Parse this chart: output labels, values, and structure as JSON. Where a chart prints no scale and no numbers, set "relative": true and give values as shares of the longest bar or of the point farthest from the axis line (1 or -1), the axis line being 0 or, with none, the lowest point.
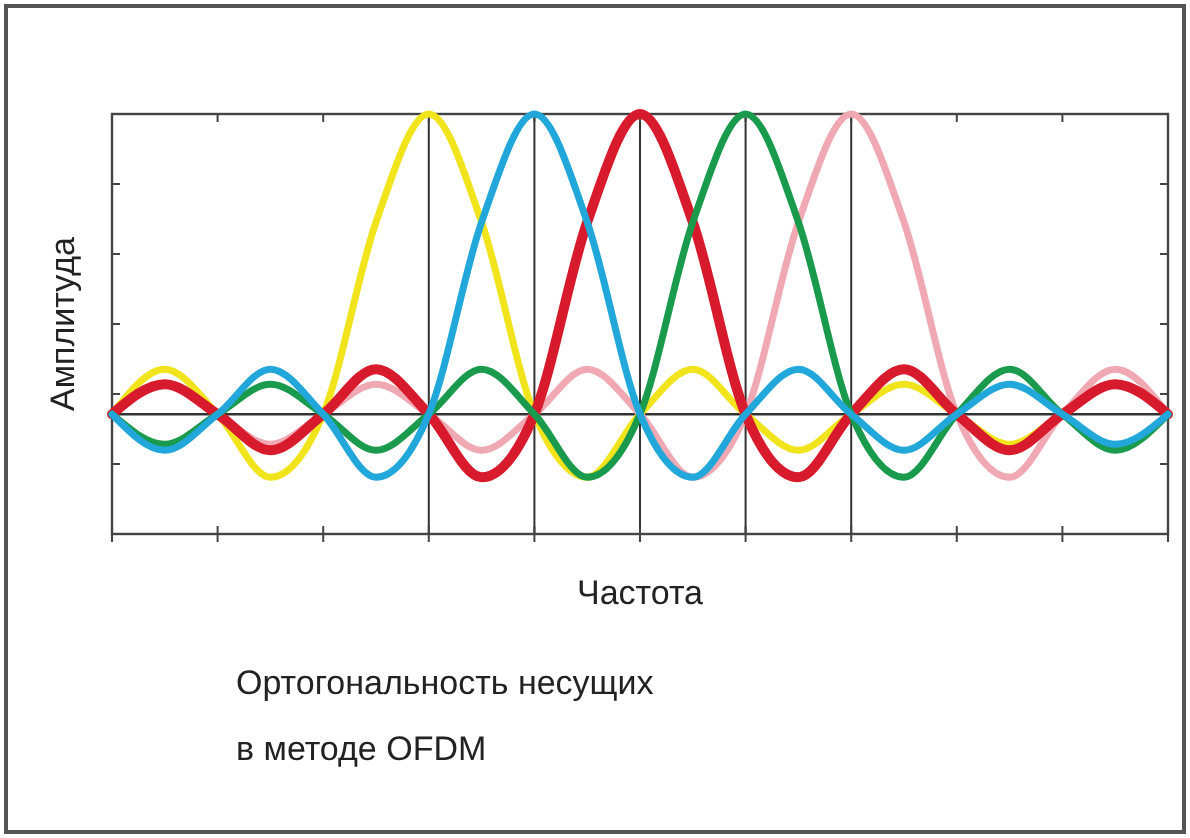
{
  "chart_data": {
    "type": "line",
    "relative": true,
    "xlabel": "Частота",
    "ylabel": "Амплитуда",
    "grid": "x",
    "line_style": "solid",
    "annotations": [
      "Ортогональность несущих\nв методе OFDM"
    ],
    "categories": [
      null,
      null,
      null,
      null,
      null,
      null,
      null,
      null,
      null,
      null,
      null,
      null,
      null,
      null,
      null,
      null,
      null,
      null,
      null,
      null,
      null
    ],
    "series": [
      {
        "color": "#f2e41c",
        "values": [
          0,
          0.15,
          0,
          -0.21,
          0,
          0.64,
          1,
          0.64,
          0,
          -0.21,
          0,
          0.15,
          0,
          -0.12,
          0,
          0.1,
          0,
          -0.1,
          0,
          0.1,
          0
        ]
      },
      {
        "color": "#f0a8b2",
        "values": [
          0,
          0.1,
          0,
          -0.1,
          0,
          0.1,
          0,
          -0.12,
          0,
          0.15,
          0,
          -0.21,
          0,
          0.64,
          1,
          0.64,
          0,
          -0.21,
          0,
          0.15,
          0
        ]
      },
      {
        "color": "#d81b2c",
        "values": [
          0,
          0.1,
          0,
          -0.12,
          0,
          0.15,
          0,
          -0.21,
          0,
          0.64,
          1,
          0.64,
          0,
          -0.21,
          0,
          0.15,
          0,
          -0.12,
          0,
          0.1,
          0
        ]
      },
      {
        "color": "#1a9a4c",
        "values": [
          0,
          -0.1,
          0,
          0.1,
          0,
          -0.12,
          0,
          0.15,
          0,
          -0.21,
          0,
          0.64,
          1,
          0.64,
          0,
          -0.21,
          0,
          0.15,
          0,
          -0.12,
          0
        ]
      },
      {
        "color": "#21a7d9",
        "values": [
          0,
          -0.12,
          0,
          0.15,
          0,
          -0.21,
          0,
          0.64,
          1,
          0.64,
          0,
          -0.21,
          0,
          0.15,
          0,
          -0.12,
          0,
          0.1,
          0,
          -0.1,
          0
        ]
      }
    ]
  }
}
